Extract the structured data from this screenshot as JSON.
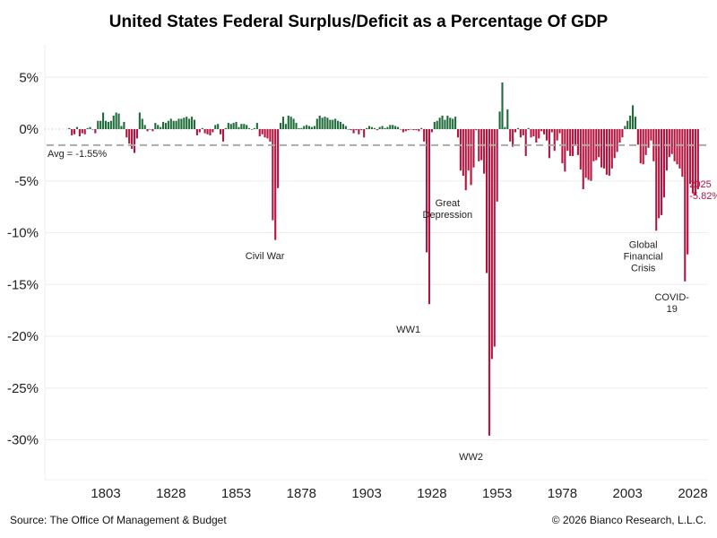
{
  "chart_data": {
    "type": "bar",
    "title": "United States Federal Surplus/Deficit as a Percentage Of GDP",
    "xlabel": "",
    "ylabel": "",
    "ylim": [
      -34,
      8
    ],
    "xlim": [
      1779,
      2035
    ],
    "yticks": [
      5,
      0,
      -5,
      -10,
      -15,
      -20,
      -25,
      -30
    ],
    "ytick_labels": [
      "5%",
      "0%",
      "-5%",
      "-10%",
      "-15%",
      "-20%",
      "-25%",
      "-30%"
    ],
    "xticks": [
      1803,
      1828,
      1853,
      1878,
      1903,
      1928,
      1953,
      1978,
      2003,
      2028
    ],
    "xtick_labels": [
      "1803",
      "1828",
      "1853",
      "1878",
      "1903",
      "1928",
      "1953",
      "1978",
      "2003",
      "2028"
    ],
    "grid": true,
    "colors": {
      "surplus": "#1f6b3a",
      "deficit": "#b5123e",
      "average": "#aaaaaa"
    },
    "average": {
      "value": -1.55,
      "label": "Avg = -1.55%"
    },
    "start_year": 1789,
    "values": [
      0.1,
      -0.6,
      -0.5,
      0.2,
      -0.7,
      -0.4,
      -0.5,
      0.1,
      0.2,
      0.0,
      -0.4,
      0.8,
      0.8,
      1.6,
      0.8,
      0.7,
      0.8,
      1.3,
      1.6,
      1.5,
      0.3,
      0.7,
      -0.8,
      -1.4,
      -1.9,
      -2.3,
      -0.9,
      1.6,
      1.0,
      0.4,
      -0.2,
      0.0,
      -0.2,
      0.6,
      0.4,
      0.2,
      0.7,
      0.6,
      0.8,
      1.0,
      0.8,
      0.8,
      1.0,
      1.0,
      1.1,
      1.2,
      1.0,
      1.2,
      0.9,
      -0.6,
      -0.3,
      0.1,
      -0.4,
      -0.5,
      -0.6,
      -0.3,
      0.4,
      0.5,
      -0.5,
      -1.2,
      0.1,
      0.6,
      0.5,
      0.6,
      0.7,
      0.2,
      0.5,
      0.5,
      0.4,
      0.1,
      0.0,
      0.1,
      0.6,
      -0.7,
      -0.5,
      -0.8,
      -0.9,
      -1.2,
      -8.8,
      -10.7,
      -5.7,
      0.6,
      1.2,
      0.5,
      1.3,
      1.2,
      1.0,
      0.6,
      0.1,
      0.1,
      0.3,
      0.4,
      0.3,
      0.2,
      0.3,
      1.0,
      1.3,
      1.1,
      1.2,
      1.1,
      0.9,
      0.9,
      1.0,
      0.8,
      0.7,
      0.5,
      0.3,
      0.0,
      -0.1,
      -0.4,
      -0.1,
      -0.5,
      -0.1,
      -0.8,
      0.1,
      0.3,
      0.2,
      0.1,
      -0.1,
      0.2,
      0.3,
      0.1,
      0.2,
      0.4,
      0.4,
      0.3,
      0.2,
      0.0,
      -0.3,
      -0.2,
      -0.1,
      0.0,
      -0.1,
      -0.1,
      -0.2,
      0.1,
      -1.2,
      -11.9,
      -16.9,
      -0.3,
      0.7,
      0.8,
      1.1,
      1.3,
      0.9,
      1.3,
      1.1,
      1.0,
      1.2,
      -0.8,
      -4.0,
      -4.5,
      -5.9,
      -4.0,
      -5.4,
      -3.7,
      -0.1,
      -3.1,
      -3.0,
      -4.3,
      -13.9,
      -29.6,
      -22.2,
      -21.0,
      -7.0,
      1.7,
      4.5,
      0.2,
      1.9,
      -1.2,
      -1.7,
      -0.3,
      0.1,
      -0.8,
      -0.6,
      -2.6,
      0.1,
      -0.8,
      -0.7,
      -1.3,
      -0.9,
      -0.2,
      -0.5,
      -1.1,
      -2.8,
      -0.3,
      -2.1,
      -1.1,
      -0.4,
      -3.3,
      -4.1,
      -2.1,
      -2.6,
      -2.6,
      -1.6,
      -2.5,
      -3.9,
      -5.8,
      -4.7,
      -4.9,
      -5.0,
      -3.1,
      -3.0,
      -2.7,
      -3.7,
      -3.8,
      -4.4,
      -4.5,
      -3.8,
      -2.8,
      -2.2,
      -1.3,
      -0.8,
      0.3,
      0.8,
      1.3,
      2.3,
      1.2,
      -1.5,
      -3.3,
      -3.4,
      -2.5,
      -1.8,
      -1.1,
      -3.1,
      -9.8,
      -8.6,
      -8.3,
      -6.6,
      -4.0,
      -2.7,
      -2.4,
      -3.1,
      -3.4,
      -3.8,
      -4.6,
      -14.7,
      -12.1,
      -5.3,
      -6.2,
      -6.4,
      -5.8
    ],
    "annotations": [
      {
        "text": [
          "Civil War"
        ],
        "year": 1864,
        "value": -11.6
      },
      {
        "text": [
          "WW1"
        ],
        "year": 1919,
        "value": -18.7
      },
      {
        "text": [
          "Great",
          "Depression"
        ],
        "year": 1934,
        "value": -6.5
      },
      {
        "text": [
          "WW2"
        ],
        "year": 1943,
        "value": -31.0
      },
      {
        "text": [
          "Global",
          "Financial",
          "Crisis"
        ],
        "year": 2009,
        "value": -10.5
      },
      {
        "text": [
          "COVID-",
          "19"
        ],
        "year": 2020,
        "value": -15.6
      }
    ],
    "last_label": {
      "year_text": "2025",
      "value_text": "-5.82%"
    }
  },
  "footer": {
    "source": "Source: The Office Of Management & Budget",
    "copyright": "© 2026 Bianco Research, L.L.C."
  }
}
